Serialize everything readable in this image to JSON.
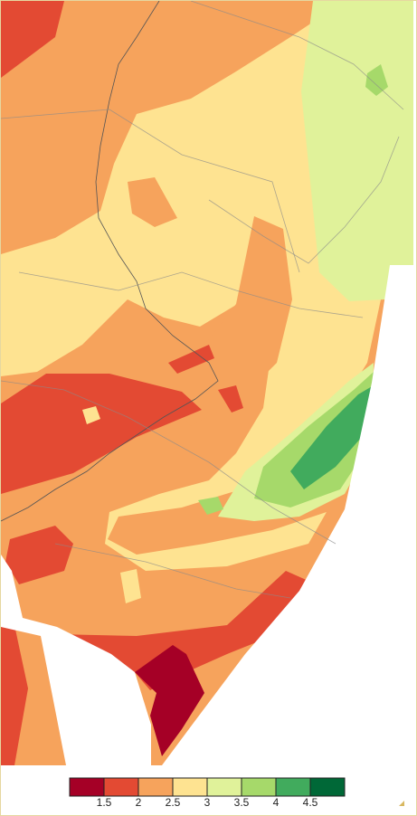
{
  "legend": {
    "colors": [
      "#a50026",
      "#e34a33",
      "#f6a35c",
      "#fee391",
      "#e0f29a",
      "#a6d96a",
      "#41ab5d",
      "#006837"
    ],
    "ticks": [
      1.5,
      2,
      2.5,
      3,
      3.5,
      4,
      4.5
    ]
  }
}
